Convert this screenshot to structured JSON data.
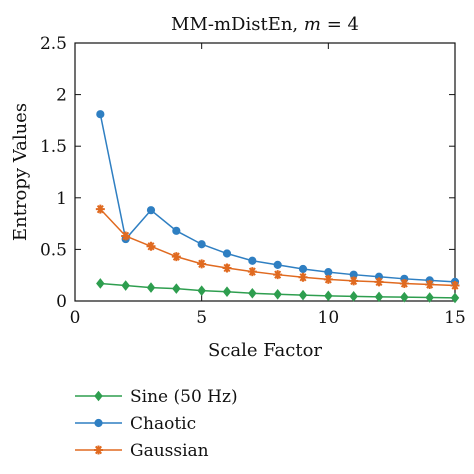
{
  "chart_data": {
    "type": "line",
    "title_prefix": "MM-mDistEn, ",
    "title_var": "m",
    "title_suffix": " = 4",
    "xlabel": "Scale Factor",
    "ylabel": "Entropy Values",
    "xlim": [
      0,
      15
    ],
    "ylim": [
      0,
      2.5
    ],
    "xticks": [
      "0",
      "5",
      "10",
      "15"
    ],
    "yticks": [
      "0",
      "0.5",
      "1",
      "1.5",
      "2",
      "2.5"
    ],
    "x": [
      1,
      2,
      3,
      4,
      5,
      6,
      7,
      8,
      9,
      10,
      11,
      12,
      13,
      14,
      15
    ],
    "series": [
      {
        "name": "Sine (50 Hz)",
        "color": "#2e9e4f",
        "marker": "diamond",
        "values": [
          0.17,
          0.15,
          0.13,
          0.12,
          0.1,
          0.09,
          0.075,
          0.065,
          0.057,
          0.05,
          0.045,
          0.04,
          0.037,
          0.034,
          0.03
        ]
      },
      {
        "name": "Chaotic",
        "color": "#2f7fc2",
        "marker": "circle",
        "values": [
          1.81,
          0.6,
          0.88,
          0.68,
          0.55,
          0.46,
          0.39,
          0.35,
          0.31,
          0.28,
          0.255,
          0.235,
          0.215,
          0.2,
          0.185
        ]
      },
      {
        "name": "Gaussian",
        "color": "#e06a20",
        "marker": "asterisk",
        "values": [
          0.89,
          0.63,
          0.53,
          0.43,
          0.36,
          0.32,
          0.285,
          0.255,
          0.23,
          0.21,
          0.195,
          0.185,
          0.17,
          0.16,
          0.15
        ]
      }
    ],
    "grid": false,
    "legend_position": "bottom"
  }
}
